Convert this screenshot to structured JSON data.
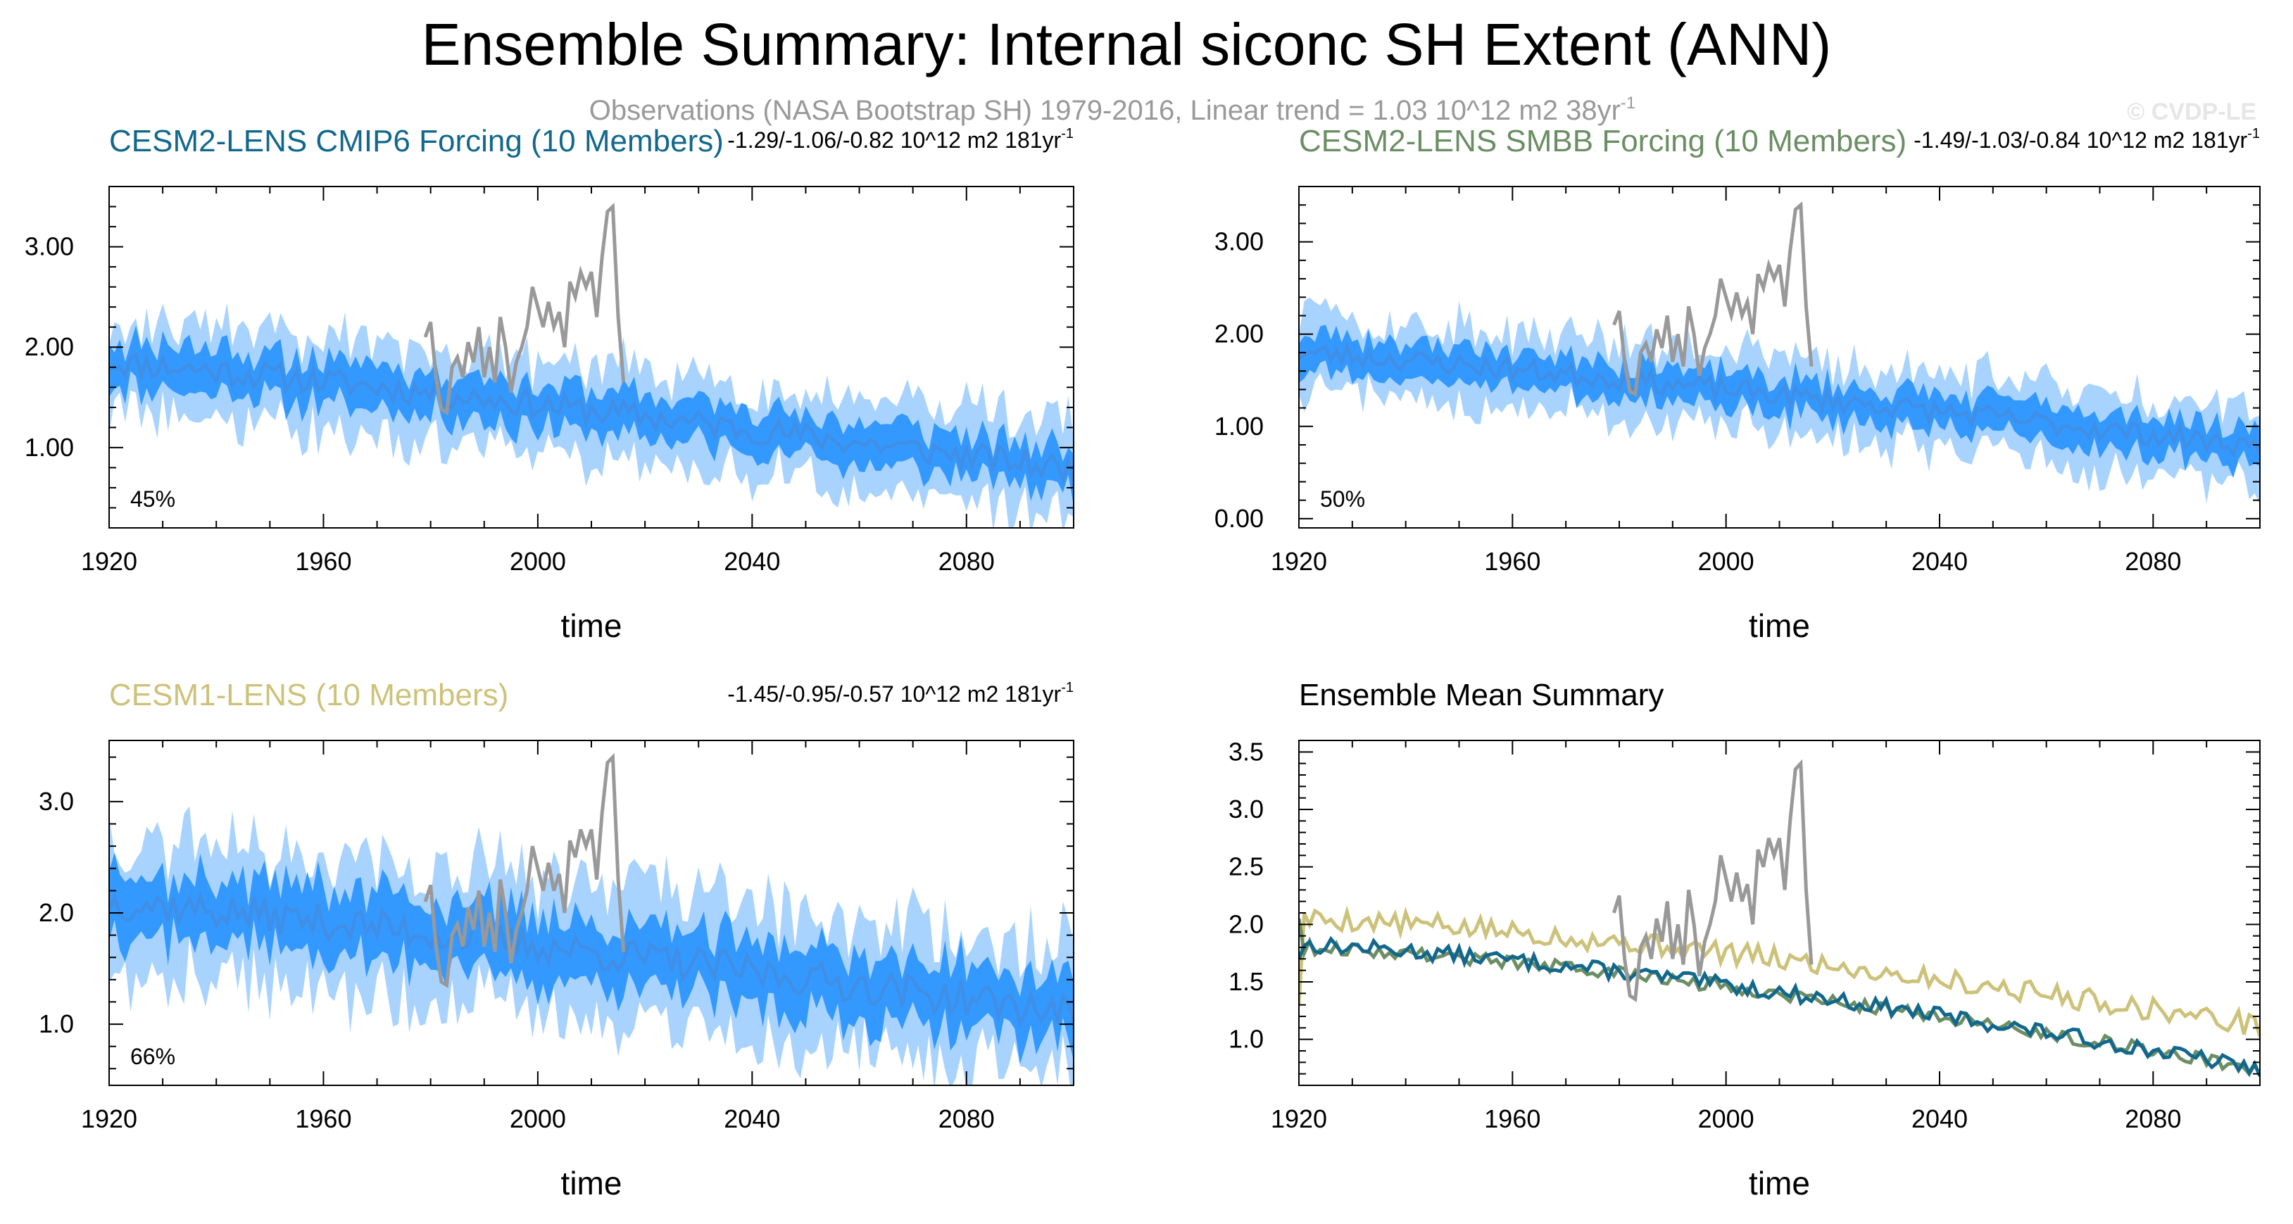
{
  "title": "Ensemble Summary: Internal siconc SH Extent (ANN)",
  "subtitle": "Observations (NASA Bootstrap SH) 1979-2016, Linear trend = 1.03 10^12 m2 38yr",
  "subtitle_sup": "-1",
  "watermark": "© CVDP-LE",
  "colors": {
    "outer_band": "#a9d3ff",
    "inner_band": "#3399ff",
    "ens_mean": "#3f8fe6",
    "obs": "#999999",
    "cmip6": "#12688c",
    "smbb": "#6b8e64",
    "cesm1": "#cdc27a",
    "axis": "#000000"
  },
  "chart_data": [
    {
      "id": "cmip6",
      "type": "area",
      "title": "CESM2-LENS CMIP6 Forcing (10 Members)",
      "title_color": "#12688c",
      "trend": "-1.29/-1.06/-0.82 10^12 m2 181yr",
      "trend_sup": "-1",
      "percent": "45%",
      "xlabel": "time",
      "xlim": [
        1920,
        2100
      ],
      "ylim": [
        0.2,
        3.6
      ],
      "yticks": [
        1.0,
        2.0,
        3.0
      ],
      "ytick_labels": [
        "1.00",
        "2.00",
        "3.00"
      ],
      "xticks": [
        1920,
        1960,
        2000,
        2040,
        2080
      ],
      "xtick_labels": [
        "1920",
        "1960",
        "2000",
        "2040",
        "2080"
      ],
      "mean_start": 1.85,
      "mean_end": 0.78,
      "inner_spread": 0.22,
      "outer_spread": 0.45,
      "noise": 0.14,
      "seed": 11
    },
    {
      "id": "smbb",
      "type": "area",
      "title": "CESM2-LENS SMBB Forcing (10 Members)",
      "title_color": "#6b8e64",
      "trend": "-1.49/-1.03/-0.84 10^12 m2 181yr",
      "trend_sup": "-1",
      "percent": "50%",
      "xlabel": "time",
      "xlim": [
        1920,
        2100
      ],
      "ylim": [
        -0.1,
        3.6
      ],
      "yticks": [
        0.0,
        1.0,
        2.0,
        3.0
      ],
      "ytick_labels": [
        "0.00",
        "1.00",
        "2.00",
        "3.00"
      ],
      "xticks": [
        1920,
        1960,
        2000,
        2040,
        2080
      ],
      "xtick_labels": [
        "1920",
        "1960",
        "2000",
        "2040",
        "2080"
      ],
      "mean_start": 1.8,
      "mean_end": 0.78,
      "inner_spread": 0.2,
      "outer_spread": 0.42,
      "noise": 0.12,
      "seed": 23
    },
    {
      "id": "cesm1",
      "type": "area",
      "title": "CESM1-LENS (10 Members)",
      "title_color": "#cdc27a",
      "trend": "-1.45/-0.95/-0.57 10^12 m2 181yr",
      "trend_sup": "-1",
      "percent": "66%",
      "xlabel": "time",
      "xlim": [
        1920,
        2100
      ],
      "ylim": [
        0.45,
        3.55
      ],
      "yticks": [
        1.0,
        2.0,
        3.0
      ],
      "ytick_labels": [
        "1.0",
        "2.0",
        "3.0"
      ],
      "xticks": [
        1920,
        1960,
        2000,
        2040,
        2080
      ],
      "xtick_labels": [
        "1920",
        "1960",
        "2000",
        "2040",
        "2080"
      ],
      "mean_start": 2.1,
      "mean_end": 1.1,
      "inner_spread": 0.3,
      "outer_spread": 0.6,
      "noise": 0.16,
      "seed": 37
    },
    {
      "id": "summary",
      "type": "line",
      "title": "Ensemble Mean Summary",
      "title_color": "#000000",
      "xlabel": "time",
      "xlim": [
        1920,
        2100
      ],
      "ylim": [
        0.6,
        3.6
      ],
      "yticks": [
        1.0,
        1.5,
        2.0,
        2.5,
        3.0,
        3.5
      ],
      "ytick_labels": [
        "1.0",
        "1.5",
        "2.0",
        "2.5",
        "3.0",
        "3.5"
      ],
      "xticks": [
        1920,
        1960,
        2000,
        2040,
        2080
      ],
      "xtick_labels": [
        "1920",
        "1960",
        "2000",
        "2040",
        "2080"
      ],
      "series": [
        {
          "name": "CESM1-LENS",
          "color": "#cdc27a",
          "start": 2.05,
          "end": 1.12,
          "noise": 0.1,
          "seed": 5,
          "first": 1.3
        },
        {
          "name": "CESM2-LENS SMBB",
          "color": "#6b8e64",
          "start": 1.8,
          "end": 0.74,
          "noise": 0.06,
          "seed": 9,
          "first": 2.05
        },
        {
          "name": "CESM2-LENS CMIP6",
          "color": "#12688c",
          "start": 1.82,
          "end": 0.74,
          "noise": 0.07,
          "seed": 13,
          "first": 1.7
        }
      ]
    }
  ],
  "observations": {
    "name": "NASA Bootstrap SH",
    "years": [
      1979,
      1980,
      1981,
      1982,
      1983,
      1984,
      1985,
      1986,
      1987,
      1988,
      1989,
      1990,
      1991,
      1992,
      1993,
      1994,
      1995,
      1996,
      1997,
      1998,
      1999,
      2000,
      2001,
      2002,
      2003,
      2004,
      2005,
      2006,
      2007,
      2008,
      2009,
      2010,
      2011,
      2012,
      2013,
      2014,
      2015,
      2016
    ],
    "values": [
      2.1,
      2.25,
      1.7,
      1.38,
      1.35,
      1.8,
      1.9,
      1.7,
      2.05,
      1.85,
      2.2,
      1.7,
      2.0,
      1.65,
      2.3,
      2.0,
      1.55,
      1.85,
      2.0,
      2.2,
      2.6,
      2.4,
      2.2,
      2.45,
      2.2,
      2.35,
      2.0,
      2.65,
      2.5,
      2.75,
      2.6,
      2.75,
      2.3,
      2.9,
      3.35,
      3.4,
      2.3,
      1.65
    ]
  }
}
